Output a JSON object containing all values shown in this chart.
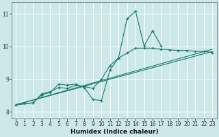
{
  "xlabel": "Humidex (Indice chaleur)",
  "ylabel": "",
  "bg_color": "#cce8e8",
  "line_color": "#1a7a6e",
  "grid_color": "#ffffff",
  "xlim": [
    -0.5,
    23.5
  ],
  "ylim": [
    7.8,
    11.35
  ],
  "xticks": [
    0,
    1,
    2,
    3,
    4,
    5,
    6,
    7,
    8,
    9,
    10,
    11,
    12,
    13,
    14,
    15,
    16,
    17,
    18,
    19,
    20,
    21,
    22,
    23
  ],
  "yticks": [
    8,
    9,
    10,
    11
  ],
  "line_straight1": [
    [
      0,
      8.22
    ],
    [
      23,
      9.85
    ]
  ],
  "line_straight2": [
    [
      0,
      8.22
    ],
    [
      23,
      9.92
    ]
  ],
  "line_jagged1_x": [
    0,
    1,
    2,
    3,
    4,
    5,
    6,
    7,
    8,
    9,
    10,
    11,
    12,
    13,
    14,
    15,
    16,
    17,
    18,
    19,
    20,
    21,
    22,
    23
  ],
  "line_jagged1_y": [
    8.22,
    8.25,
    8.28,
    8.55,
    8.62,
    8.75,
    8.72,
    8.82,
    8.78,
    8.72,
    9.0,
    9.42,
    9.65,
    9.8,
    9.95,
    9.95,
    9.95,
    9.92,
    9.9,
    9.88,
    9.88,
    9.85,
    9.85,
    9.82
  ],
  "line_jagged2_x": [
    0,
    2,
    3,
    4,
    5,
    6,
    7,
    8,
    9,
    10,
    11,
    12,
    13,
    14,
    15,
    16,
    17
  ],
  "line_jagged2_y": [
    8.22,
    8.28,
    8.52,
    8.6,
    8.85,
    8.82,
    8.85,
    8.75,
    8.38,
    8.35,
    9.28,
    9.65,
    10.85,
    11.08,
    10.02,
    10.48,
    10.02
  ]
}
